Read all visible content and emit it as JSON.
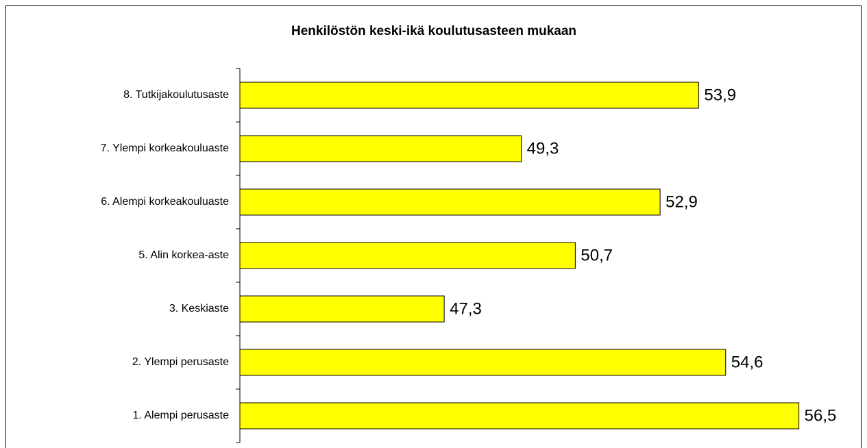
{
  "chart_data": {
    "type": "bar",
    "orientation": "horizontal",
    "title": "Henkilöstön keski-ikä koulutusasteen mukaan",
    "categories": [
      "8. Tutkijakoulutusaste",
      "7. Ylempi korkeakouluaste",
      "6. Alempi korkeakouluaste",
      "5. Alin korkea-aste",
      "3. Keskiaste",
      "2. Ylempi perusaste",
      "1. Alempi perusaste"
    ],
    "values": [
      53.9,
      49.3,
      52.9,
      50.7,
      47.3,
      54.6,
      56.5
    ],
    "value_labels": [
      "53,9",
      "49,3",
      "52,9",
      "50,7",
      "47,3",
      "54,6",
      "56,5"
    ],
    "color": "#ffff00",
    "xlim": [
      42,
      58
    ]
  }
}
